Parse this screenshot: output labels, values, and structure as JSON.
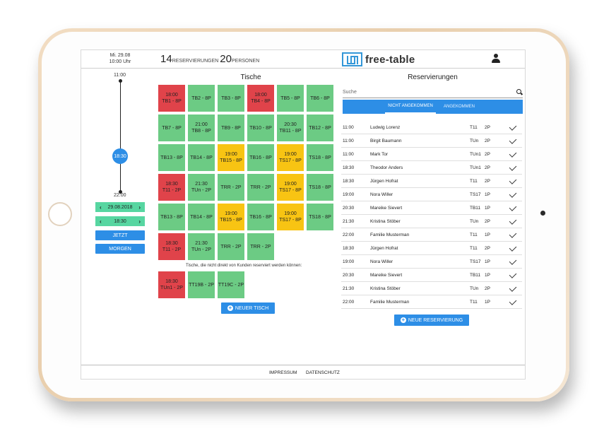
{
  "header": {
    "date": "Mi. 29.08",
    "time": "10:00 Uhr",
    "reservations_count": "14",
    "reservations_label": "RESERVIERUNGEN",
    "persons_count": "20",
    "persons_label": "PERSONEN",
    "logo_text": "free-table",
    "user_icon": "user-icon"
  },
  "timeline": {
    "start": "11:00",
    "end": "22:00",
    "current": "18:30",
    "date_value": "29.08.2018",
    "time_value": "18:30",
    "now_label": "JETZT",
    "tomorrow_label": "MORGEN"
  },
  "tables": {
    "title": "Tische",
    "note": "Tische, die nicht direkt von Kunden reserviert werden können:",
    "new_table_label": "NEUER TISCH",
    "grid": [
      {
        "time": "18:00",
        "label": "TB1 - 8P",
        "status": "red"
      },
      {
        "time": "",
        "label": "TB2 - 8P",
        "status": "green"
      },
      {
        "time": "",
        "label": "TB3 - 8P",
        "status": "green"
      },
      {
        "time": "18:00",
        "label": "TB4 - 8P",
        "status": "red"
      },
      {
        "time": "",
        "label": "TB5 - 8P",
        "status": "green"
      },
      {
        "time": "",
        "label": "TB6 - 8P",
        "status": "green"
      },
      {
        "time": "",
        "label": "TB7 - 8P",
        "status": "green"
      },
      {
        "time": "21:00",
        "label": "TB8 - 8P",
        "status": "green"
      },
      {
        "time": "",
        "label": "TB9 - 8P",
        "status": "green"
      },
      {
        "time": "",
        "label": "TB10 - 8P",
        "status": "green"
      },
      {
        "time": "20:30",
        "label": "TB11 - 8P",
        "status": "green"
      },
      {
        "time": "",
        "label": "TB12 - 8P",
        "status": "green"
      },
      {
        "time": "",
        "label": "TB13 - 8P",
        "status": "green"
      },
      {
        "time": "",
        "label": "TB14 - 8P",
        "status": "green"
      },
      {
        "time": "19:00",
        "label": "TB15 - 8P",
        "status": "yellow"
      },
      {
        "time": "",
        "label": "TB16 - 8P",
        "status": "green"
      },
      {
        "time": "19:00",
        "label": "TS17 - 8P",
        "status": "yellow"
      },
      {
        "time": "",
        "label": "TS18 - 8P",
        "status": "green"
      },
      {
        "time": "18:30",
        "label": "T11 - 2P",
        "status": "red"
      },
      {
        "time": "21:30",
        "label": "TUn - 2P",
        "status": "green"
      },
      {
        "time": "",
        "label": "TRR - 2P",
        "status": "green"
      },
      {
        "time": "",
        "label": "TRR - 2P",
        "status": "green"
      },
      {
        "time": "19:00",
        "label": "TS17 - 8P",
        "status": "yellow"
      },
      {
        "time": "",
        "label": "TS18 - 8P",
        "status": "green"
      },
      {
        "time": "",
        "label": "TB13 - 8P",
        "status": "green"
      },
      {
        "time": "",
        "label": "TB14 - 8P",
        "status": "green"
      },
      {
        "time": "19:00",
        "label": "TB15 - 8P",
        "status": "yellow"
      },
      {
        "time": "",
        "label": "TB16 - 8P",
        "status": "green"
      },
      {
        "time": "19:00",
        "label": "TS17 - 8P",
        "status": "yellow"
      },
      {
        "time": "",
        "label": "TS18 - 8P",
        "status": "green"
      },
      {
        "time": "18:30",
        "label": "T11 - 2P",
        "status": "red"
      },
      {
        "time": "21:30",
        "label": "TUn - 2P",
        "status": "green"
      },
      {
        "time": "",
        "label": "TRR - 2P",
        "status": "green"
      },
      {
        "time": "",
        "label": "TRR - 2P",
        "status": "green"
      }
    ],
    "special": [
      {
        "time": "18:30",
        "label": "TUn1 - 2P",
        "status": "red"
      },
      {
        "time": "",
        "label": "TT19B - 2P",
        "status": "green"
      },
      {
        "time": "",
        "label": "TT19C - 2P",
        "status": "green"
      }
    ]
  },
  "reservations": {
    "title": "Reservierungen",
    "search_placeholder": "Suche",
    "tab_not_arrived": "NICHT ANGEKOMMEN",
    "tab_arrived": "ANGEKOMMEN",
    "new_reservation_label": "NEUE RESERVIERUNG",
    "rows": [
      {
        "time": "11:00",
        "name": "Ludwig Lorenz",
        "table": "T11",
        "persons": "2P"
      },
      {
        "time": "11:00",
        "name": "Birgit Baumann",
        "table": "TUn",
        "persons": "2P"
      },
      {
        "time": "11:00",
        "name": "Mark Tor",
        "table": "TUn1",
        "persons": "2P"
      },
      {
        "time": "18:30",
        "name": "Theodor Anders",
        "table": "TUn1",
        "persons": "2P"
      },
      {
        "time": "18:30",
        "name": "Jürgen Hofrat",
        "table": "T11",
        "persons": "2P"
      },
      {
        "time": "19:00",
        "name": "Nora Willer",
        "table": "TS17",
        "persons": "1P"
      },
      {
        "time": "20:30",
        "name": "Mareike Sievert",
        "table": "TB11",
        "persons": "1P"
      },
      {
        "time": "21:30",
        "name": "Kristina Stöber",
        "table": "TUn",
        "persons": "2P"
      },
      {
        "time": "22:00",
        "name": "Familie Musterman",
        "table": "T11",
        "persons": "1P"
      },
      {
        "time": "18:30",
        "name": "Jürgen Hofrat",
        "table": "T11",
        "persons": "2P"
      },
      {
        "time": "19:00",
        "name": "Nora Willer",
        "table": "TS17",
        "persons": "1P"
      },
      {
        "time": "20:30",
        "name": "Mareike Sievert",
        "table": "TB11",
        "persons": "1P"
      },
      {
        "time": "21:30",
        "name": "Kristina Stöber",
        "table": "TUn",
        "persons": "2P"
      },
      {
        "time": "22:00",
        "name": "Familie Musterman",
        "table": "T11",
        "persons": "1P"
      }
    ]
  },
  "footer": {
    "impressum": "IMPRESSUM",
    "datenschutz": "DATENSCHUTZ"
  }
}
